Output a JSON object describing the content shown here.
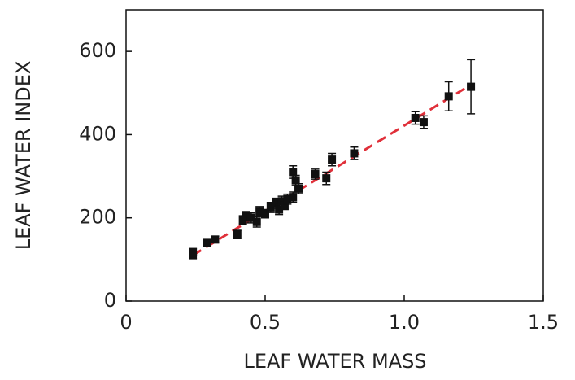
{
  "chart_data": {
    "type": "scatter",
    "xlabel": "LEAF WATER MASS",
    "ylabel": "LEAF WATER INDEX",
    "xlim": [
      0,
      1.5
    ],
    "ylim": [
      0,
      700
    ],
    "xticks": [
      0,
      0.5,
      {
        "value": 1,
        "label": "1.0"
      },
      1.5
    ],
    "yticks": [
      0,
      200,
      400,
      600
    ],
    "points": {
      "color": "#111111",
      "x": [
        0.24,
        0.24,
        0.29,
        0.32,
        0.4,
        0.42,
        0.43,
        0.45,
        0.47,
        0.48,
        0.5,
        0.52,
        0.54,
        0.55,
        0.56,
        0.57,
        0.58,
        0.6,
        0.6,
        0.61,
        0.62,
        0.68,
        0.72,
        0.74,
        0.82,
        1.04,
        1.07,
        1.16,
        1.24
      ],
      "y": [
        112,
        118,
        140,
        148,
        160,
        195,
        205,
        200,
        190,
        215,
        210,
        225,
        235,
        220,
        240,
        230,
        245,
        250,
        310,
        290,
        270,
        305,
        295,
        340,
        355,
        440,
        430,
        492,
        515
      ],
      "error": [
        10,
        8,
        8,
        8,
        10,
        10,
        10,
        12,
        12,
        12,
        10,
        12,
        12,
        12,
        12,
        10,
        12,
        12,
        15,
        12,
        12,
        12,
        15,
        15,
        15,
        15,
        15,
        35,
        65
      ]
    },
    "fit_line": {
      "color": "#e0303a",
      "x": [
        0.24,
        1.24
      ],
      "y": [
        110,
        520
      ]
    }
  }
}
